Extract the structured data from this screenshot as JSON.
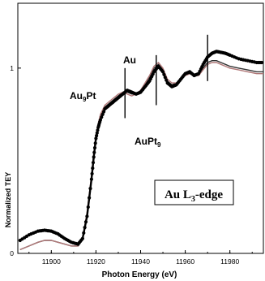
{
  "chart_data": {
    "type": "line",
    "xlabel": "Photon Energy (eV)",
    "ylabel": "Normalized TEY",
    "xlim": [
      11885,
      11995
    ],
    "ylim": [
      0,
      1.35
    ],
    "x_ticks": [
      11900,
      11920,
      11940,
      11960,
      11980
    ],
    "y_ticks": [
      0,
      1
    ],
    "grid": false,
    "edge_label": {
      "main": "Au L",
      "sub": "3",
      "suffix": "-edge"
    },
    "annotations": [
      {
        "text": "Au",
        "sub": ""
      },
      {
        "text": "Au",
        "sub": "9",
        "suffix": "Pt"
      },
      {
        "text": "AuPt",
        "sub": "9",
        "suffix": ""
      }
    ],
    "markers_x": [
      11933,
      11947,
      11970
    ],
    "colors": {
      "au": "#000000",
      "au9pt": "#333333",
      "aupt9": "#b07878"
    },
    "series": [
      {
        "key": "au",
        "style": "dots",
        "x": [
          11886,
          11890,
          11894,
          11897,
          11900,
          11903,
          11906,
          11909,
          11912,
          11914,
          11916,
          11918,
          11919,
          11920,
          11921,
          11922,
          11924,
          11926,
          11928,
          11930,
          11932,
          11934,
          11936,
          11938,
          11940,
          11942,
          11944,
          11946,
          11948,
          11950,
          11952,
          11954,
          11956,
          11958,
          11960,
          11962,
          11964,
          11966,
          11968,
          11970,
          11972,
          11974,
          11976,
          11978,
          11980,
          11984,
          11988,
          11992,
          11995
        ],
        "y": [
          0.07,
          0.1,
          0.12,
          0.125,
          0.12,
          0.105,
          0.08,
          0.06,
          0.05,
          0.08,
          0.2,
          0.4,
          0.52,
          0.62,
          0.68,
          0.72,
          0.78,
          0.8,
          0.82,
          0.84,
          0.86,
          0.88,
          0.87,
          0.86,
          0.87,
          0.9,
          0.93,
          0.98,
          1.01,
          0.98,
          0.92,
          0.9,
          0.91,
          0.94,
          0.97,
          0.98,
          0.96,
          0.97,
          1.02,
          1.06,
          1.08,
          1.09,
          1.085,
          1.08,
          1.07,
          1.05,
          1.04,
          1.03,
          1.03
        ]
      },
      {
        "key": "au9pt",
        "style": "line",
        "x": [
          11886,
          11890,
          11894,
          11897,
          11900,
          11903,
          11906,
          11909,
          11912,
          11914,
          11916,
          11918,
          11919,
          11920,
          11921,
          11922,
          11924,
          11926,
          11928,
          11930,
          11932,
          11934,
          11936,
          11938,
          11940,
          11942,
          11944,
          11946,
          11948,
          11950,
          11952,
          11954,
          11956,
          11958,
          11960,
          11962,
          11964,
          11966,
          11968,
          11970,
          11972,
          11974,
          11976,
          11978,
          11980,
          11984,
          11988,
          11992,
          11995
        ],
        "y": [
          0.02,
          0.04,
          0.06,
          0.07,
          0.07,
          0.06,
          0.05,
          0.04,
          0.04,
          0.08,
          0.21,
          0.41,
          0.53,
          0.63,
          0.69,
          0.74,
          0.79,
          0.81,
          0.83,
          0.85,
          0.87,
          0.87,
          0.86,
          0.86,
          0.88,
          0.91,
          0.95,
          1.0,
          1.02,
          0.99,
          0.93,
          0.91,
          0.92,
          0.94,
          0.96,
          0.97,
          0.96,
          0.97,
          1.0,
          1.03,
          1.04,
          1.04,
          1.03,
          1.02,
          1.01,
          1.0,
          0.99,
          0.98,
          0.98
        ]
      },
      {
        "key": "aupt9",
        "style": "line",
        "x": [
          11886,
          11890,
          11894,
          11897,
          11900,
          11903,
          11906,
          11909,
          11912,
          11914,
          11916,
          11918,
          11919,
          11920,
          11921,
          11922,
          11924,
          11926,
          11928,
          11930,
          11932,
          11934,
          11936,
          11938,
          11940,
          11942,
          11944,
          11946,
          11948,
          11950,
          11952,
          11954,
          11956,
          11958,
          11960,
          11962,
          11964,
          11966,
          11968,
          11970,
          11972,
          11974,
          11976,
          11978,
          11980,
          11984,
          11988,
          11992,
          11995
        ],
        "y": [
          0.02,
          0.04,
          0.06,
          0.07,
          0.07,
          0.06,
          0.05,
          0.04,
          0.04,
          0.08,
          0.22,
          0.42,
          0.54,
          0.64,
          0.7,
          0.75,
          0.8,
          0.82,
          0.84,
          0.86,
          0.87,
          0.86,
          0.85,
          0.86,
          0.88,
          0.92,
          0.96,
          1.01,
          1.03,
          1.0,
          0.94,
          0.92,
          0.92,
          0.94,
          0.96,
          0.97,
          0.96,
          0.96,
          0.99,
          1.02,
          1.03,
          1.03,
          1.02,
          1.01,
          1.0,
          0.99,
          0.98,
          0.97,
          0.97
        ]
      }
    ]
  }
}
